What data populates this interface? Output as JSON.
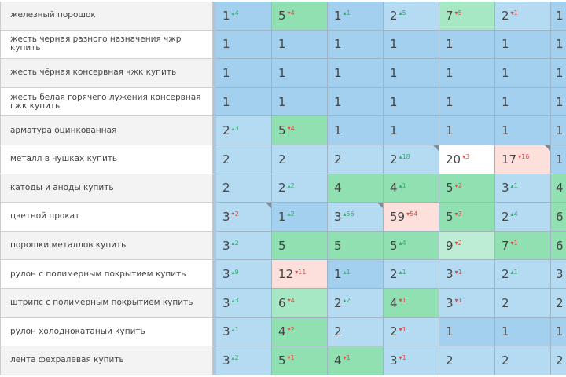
{
  "colors": {
    "mb": "#a3d0ee",
    "lb": "#b5dbf2",
    "g": "#90e0b2",
    "lg": "#a6e8c3",
    "pg": "#bdeed5",
    "pk": "#fde0dc",
    "w": "#ffffff",
    "delta_up": "#3aa876",
    "delta_down": "#e04848"
  },
  "rows": [
    {
      "keyword": "железный порошок",
      "cells": [
        {
          "v": "1",
          "d": "4",
          "dir": "up",
          "c": "mb"
        },
        {
          "v": "5",
          "d": "4",
          "dir": "down",
          "c": "g"
        },
        {
          "v": "1",
          "d": "1",
          "dir": "up",
          "c": "mb"
        },
        {
          "v": "2",
          "d": "5",
          "dir": "up",
          "c": "lb"
        },
        {
          "v": "7",
          "d": "5",
          "dir": "down",
          "c": "lg"
        },
        {
          "v": "2",
          "d": "1",
          "dir": "down",
          "c": "lb"
        },
        {
          "v": "1",
          "c": "mb"
        }
      ]
    },
    {
      "keyword": "жесть черная разного назначения чжр купить",
      "cells": [
        {
          "v": "1",
          "c": "mb"
        },
        {
          "v": "1",
          "c": "mb"
        },
        {
          "v": "1",
          "c": "mb"
        },
        {
          "v": "1",
          "c": "mb"
        },
        {
          "v": "1",
          "c": "mb"
        },
        {
          "v": "1",
          "c": "mb"
        },
        {
          "v": "1",
          "c": "mb"
        }
      ]
    },
    {
      "keyword": "жесть чёрная консервная чжк купить",
      "cells": [
        {
          "v": "1",
          "c": "mb"
        },
        {
          "v": "1",
          "c": "mb"
        },
        {
          "v": "1",
          "c": "mb"
        },
        {
          "v": "1",
          "c": "mb"
        },
        {
          "v": "1",
          "c": "mb"
        },
        {
          "v": "1",
          "c": "mb"
        },
        {
          "v": "1",
          "c": "mb"
        }
      ]
    },
    {
      "keyword": "жесть белая горячего лужения консервная гжк купить",
      "cells": [
        {
          "v": "1",
          "c": "mb"
        },
        {
          "v": "1",
          "c": "mb"
        },
        {
          "v": "1",
          "c": "mb"
        },
        {
          "v": "1",
          "c": "mb"
        },
        {
          "v": "1",
          "c": "mb"
        },
        {
          "v": "1",
          "c": "mb"
        },
        {
          "v": "1",
          "c": "mb"
        }
      ]
    },
    {
      "keyword": "арматура оцинкованная",
      "cells": [
        {
          "v": "2",
          "d": "3",
          "dir": "up",
          "c": "lb"
        },
        {
          "v": "5",
          "d": "4",
          "dir": "down",
          "c": "g"
        },
        {
          "v": "1",
          "c": "mb"
        },
        {
          "v": "1",
          "c": "mb"
        },
        {
          "v": "1",
          "c": "mb"
        },
        {
          "v": "1",
          "c": "mb"
        },
        {
          "v": "1",
          "c": "mb"
        }
      ]
    },
    {
      "keyword": "металл в чушках купить",
      "cells": [
        {
          "v": "2",
          "c": "lb"
        },
        {
          "v": "2",
          "c": "lb"
        },
        {
          "v": "2",
          "c": "lb"
        },
        {
          "v": "2",
          "d": "18",
          "dir": "up",
          "c": "lb",
          "mark": true
        },
        {
          "v": "20",
          "d": "3",
          "dir": "down",
          "c": "w"
        },
        {
          "v": "17",
          "d": "16",
          "dir": "down",
          "c": "pk",
          "mark": true
        },
        {
          "v": "1",
          "c": "mb"
        }
      ]
    },
    {
      "keyword": "катоды и аноды купить",
      "cells": [
        {
          "v": "2",
          "c": "lb"
        },
        {
          "v": "2",
          "d": "2",
          "dir": "up",
          "c": "lb"
        },
        {
          "v": "4",
          "c": "g"
        },
        {
          "v": "4",
          "d": "1",
          "dir": "up",
          "c": "g"
        },
        {
          "v": "5",
          "d": "2",
          "dir": "down",
          "c": "g"
        },
        {
          "v": "3",
          "d": "1",
          "dir": "up",
          "c": "lb"
        },
        {
          "v": "4",
          "c": "g"
        }
      ]
    },
    {
      "keyword": "цветной прокат",
      "cells": [
        {
          "v": "3",
          "d": "2",
          "dir": "down",
          "c": "lb",
          "mark": true
        },
        {
          "v": "1",
          "d": "2",
          "dir": "up",
          "c": "mb"
        },
        {
          "v": "3",
          "d": "56",
          "dir": "up",
          "c": "lb",
          "mark": true
        },
        {
          "v": "59",
          "d": "54",
          "dir": "down",
          "c": "pk"
        },
        {
          "v": "5",
          "d": "3",
          "dir": "down",
          "c": "g"
        },
        {
          "v": "2",
          "d": "4",
          "dir": "up",
          "c": "lb"
        },
        {
          "v": "6",
          "c": "g"
        }
      ]
    },
    {
      "keyword": "порошки металлов купить",
      "cells": [
        {
          "v": "3",
          "d": "2",
          "dir": "up",
          "c": "lb"
        },
        {
          "v": "5",
          "c": "g"
        },
        {
          "v": "5",
          "c": "g"
        },
        {
          "v": "5",
          "d": "4",
          "dir": "up",
          "c": "g"
        },
        {
          "v": "9",
          "d": "2",
          "dir": "down",
          "c": "pg"
        },
        {
          "v": "7",
          "d": "1",
          "dir": "down",
          "c": "g"
        },
        {
          "v": "6",
          "c": "g"
        }
      ]
    },
    {
      "keyword": "рулон с полимерным покрытием купить",
      "cells": [
        {
          "v": "3",
          "d": "9",
          "dir": "up",
          "c": "lb"
        },
        {
          "v": "12",
          "d": "11",
          "dir": "down",
          "c": "pk"
        },
        {
          "v": "1",
          "d": "1",
          "dir": "up",
          "c": "mb"
        },
        {
          "v": "2",
          "d": "1",
          "dir": "up",
          "c": "lb"
        },
        {
          "v": "3",
          "d": "1",
          "dir": "down",
          "c": "lb"
        },
        {
          "v": "2",
          "d": "1",
          "dir": "up",
          "c": "lb"
        },
        {
          "v": "3",
          "c": "lb"
        }
      ]
    },
    {
      "keyword": "штрипс с полимерным покрытием купить",
      "cells": [
        {
          "v": "3",
          "d": "3",
          "dir": "up",
          "c": "lb"
        },
        {
          "v": "6",
          "d": "4",
          "dir": "down",
          "c": "lg"
        },
        {
          "v": "2",
          "d": "2",
          "dir": "up",
          "c": "lb"
        },
        {
          "v": "4",
          "d": "1",
          "dir": "down",
          "c": "g"
        },
        {
          "v": "3",
          "d": "1",
          "dir": "down",
          "c": "lb"
        },
        {
          "v": "2",
          "c": "lb"
        },
        {
          "v": "2",
          "c": "lb"
        }
      ]
    },
    {
      "keyword": "рулон холоднокатаный купить",
      "cells": [
        {
          "v": "3",
          "d": "1",
          "dir": "up",
          "c": "lb"
        },
        {
          "v": "4",
          "d": "2",
          "dir": "down",
          "c": "g"
        },
        {
          "v": "2",
          "c": "lb"
        },
        {
          "v": "2",
          "d": "1",
          "dir": "down",
          "c": "lb"
        },
        {
          "v": "1",
          "c": "mb"
        },
        {
          "v": "1",
          "c": "mb"
        },
        {
          "v": "1",
          "c": "mb"
        }
      ]
    },
    {
      "keyword": "лента фехралевая купить",
      "cells": [
        {
          "v": "3",
          "d": "2",
          "dir": "up",
          "c": "lb"
        },
        {
          "v": "5",
          "d": "1",
          "dir": "down",
          "c": "g"
        },
        {
          "v": "4",
          "d": "1",
          "dir": "down",
          "c": "g"
        },
        {
          "v": "3",
          "d": "1",
          "dir": "down",
          "c": "lb"
        },
        {
          "v": "2",
          "c": "lb"
        },
        {
          "v": "2",
          "c": "lb"
        },
        {
          "v": "2",
          "c": "lb"
        }
      ]
    }
  ]
}
